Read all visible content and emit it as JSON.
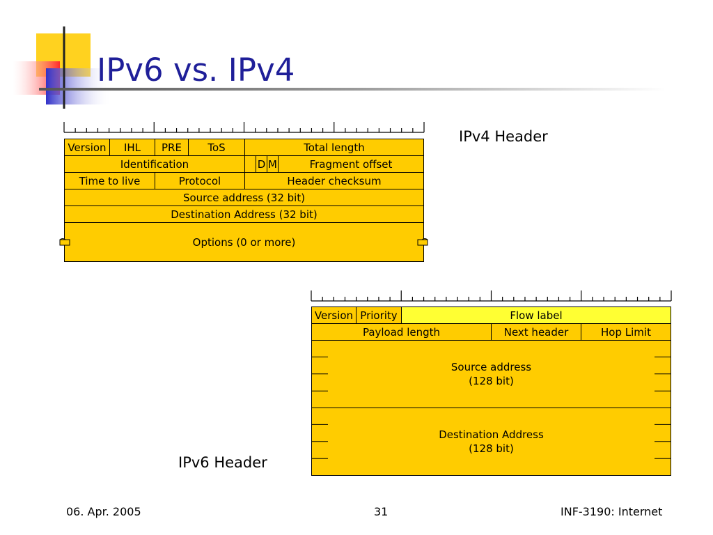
{
  "slide": {
    "title": "IPv6 vs. IPv4",
    "footer": {
      "date": "06. Apr. 2005",
      "page": "31",
      "course": "INF-3190: Internet"
    }
  },
  "ipv4": {
    "caption": "IPv4 Header",
    "fields": {
      "version": "Version",
      "ihl": "IHL",
      "pre": "PRE",
      "tos": "ToS",
      "total_length": "Total length",
      "identification": "Identification",
      "d": "D",
      "m": "M",
      "fragment_offset": "Fragment offset",
      "ttl": "Time to live",
      "protocol": "Protocol",
      "header_checksum": "Header checksum",
      "source": "Source address (32 bit)",
      "destination": "Destination Address (32 bit)",
      "options": "Options (0 or more)"
    }
  },
  "ipv6": {
    "caption": "IPv6 Header",
    "fields": {
      "version": "Version",
      "priority": "Priority",
      "flow_label": "Flow label",
      "payload_length": "Payload length",
      "next_header": "Next header",
      "hop_limit": "Hop Limit",
      "source_line1": "Source address",
      "source_line2": "(128 bit)",
      "destination_line1": "Destination Address",
      "destination_line2": "(128 bit)"
    }
  },
  "colors": {
    "field": "#ffcc00",
    "flow_label": "#ffff33",
    "title": "#1f1f99"
  }
}
